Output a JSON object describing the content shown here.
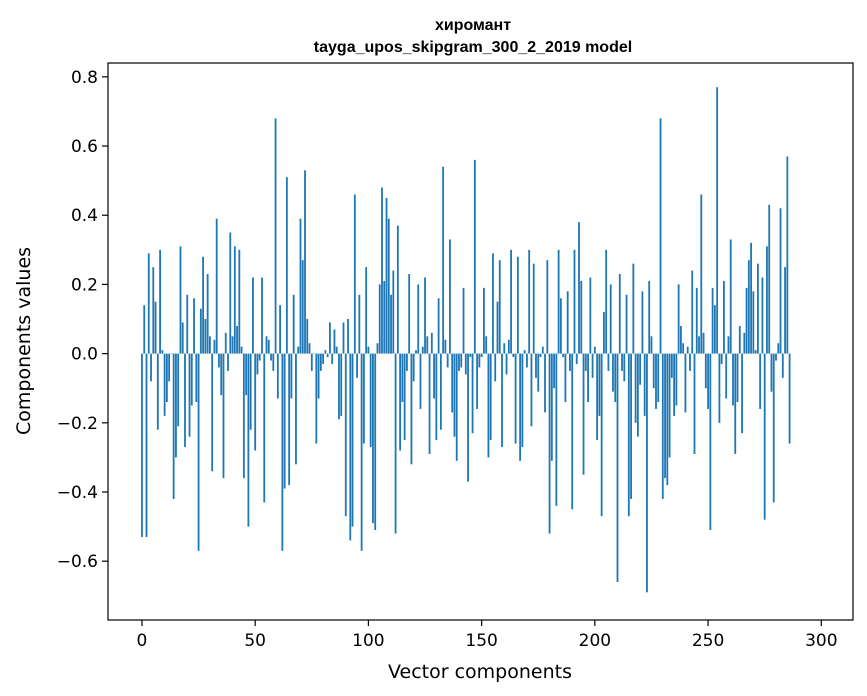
{
  "chart_data": {
    "type": "bar",
    "title": "хиромант",
    "subtitle": "tayga_upos_skipgram_300_2_2019 model",
    "xlabel": "Vector components",
    "ylabel": "Components values",
    "xlim": [
      -15,
      314
    ],
    "ylim": [
      -0.77,
      0.84
    ],
    "xticks": [
      0,
      50,
      100,
      150,
      200,
      250,
      300
    ],
    "yticks": [
      -0.6,
      -0.4,
      -0.2,
      0.0,
      0.2,
      0.4,
      0.6,
      0.8
    ],
    "xtick_labels": [
      "0",
      "50",
      "100",
      "150",
      "200",
      "250",
      "300"
    ],
    "ytick_labels": [
      "−0.6",
      "−0.4",
      "−0.2",
      "0.0",
      "0.2",
      "0.4",
      "0.6",
      "0.8"
    ],
    "grid": false,
    "bar_color": "#1f77b4",
    "values": [
      -0.53,
      0.14,
      -0.53,
      0.29,
      -0.08,
      0.25,
      0.15,
      -0.22,
      0.3,
      0.01,
      -0.18,
      -0.14,
      -0.08,
      0.0,
      -0.42,
      -0.3,
      -0.21,
      0.31,
      0.09,
      -0.27,
      0.17,
      -0.24,
      -0.15,
      0.16,
      -0.14,
      -0.57,
      0.13,
      0.28,
      0.1,
      0.23,
      0.05,
      -0.34,
      0.04,
      0.39,
      -0.04,
      -0.12,
      -0.36,
      0.06,
      -0.05,
      0.35,
      0.05,
      0.31,
      0.08,
      0.3,
      0.02,
      -0.36,
      -0.12,
      -0.5,
      -0.22,
      0.22,
      -0.28,
      -0.06,
      -0.02,
      0.22,
      -0.43,
      0.05,
      0.04,
      -0.02,
      -0.05,
      0.68,
      -0.13,
      0.14,
      -0.57,
      -0.39,
      0.51,
      -0.38,
      -0.13,
      0.17,
      -0.32,
      0.02,
      0.39,
      0.27,
      0.53,
      0.1,
      0.03,
      -0.05,
      0.0,
      -0.26,
      -0.13,
      -0.05,
      -0.03,
      0.01,
      -0.01,
      0.09,
      -0.03,
      0.07,
      0.02,
      -0.19,
      -0.18,
      0.09,
      -0.47,
      0.1,
      -0.54,
      -0.5,
      0.46,
      -0.07,
      0.17,
      -0.57,
      -0.26,
      0.25,
      0.02,
      -0.27,
      -0.49,
      -0.51,
      0.03,
      0.2,
      0.48,
      0.21,
      0.45,
      0.39,
      0.17,
      0.24,
      -0.52,
      0.37,
      -0.28,
      -0.14,
      -0.25,
      -0.05,
      0.23,
      -0.32,
      -0.08,
      0.01,
      0.2,
      -0.16,
      0.02,
      0.22,
      0.05,
      -0.29,
      0.06,
      -0.13,
      -0.25,
      0.16,
      -0.22,
      0.54,
      0.04,
      -0.04,
      0.33,
      -0.17,
      -0.24,
      -0.31,
      -0.05,
      -0.04,
      0.19,
      -0.06,
      -0.37,
      -0.01,
      -0.23,
      0.56,
      -0.16,
      -0.04,
      -0.01,
      0.19,
      0.05,
      -0.3,
      -0.25,
      0.29,
      -0.08,
      0.15,
      0.27,
      -0.27,
      0.03,
      -0.06,
      0.04,
      0.3,
      -0.01,
      -0.26,
      0.28,
      -0.31,
      -0.27,
      0.01,
      -0.04,
      0.3,
      -0.21,
      0.26,
      -0.07,
      -0.11,
      -0.01,
      0.02,
      -0.17,
      0.27,
      -0.52,
      -0.31,
      -0.1,
      -0.44,
      0.3,
      0.16,
      -0.01,
      -0.14,
      0.18,
      -0.05,
      -0.45,
      0.3,
      -0.03,
      0.38,
      0.21,
      -0.35,
      -0.05,
      -0.14,
      0.22,
      -0.07,
      0.02,
      -0.25,
      -0.18,
      -0.47,
      0.12,
      0.3,
      -0.05,
      0.2,
      -0.11,
      -0.14,
      -0.66,
      0.23,
      -0.05,
      -0.08,
      0.17,
      -0.47,
      -0.42,
      0.26,
      -0.2,
      -0.24,
      -0.09,
      0.18,
      -0.18,
      -0.69,
      0.21,
      0.05,
      -0.1,
      -0.16,
      -0.14,
      0.68,
      -0.42,
      -0.36,
      -0.38,
      -0.3,
      -0.07,
      -0.18,
      -0.15,
      0.2,
      0.08,
      0.03,
      -0.17,
      0.02,
      -0.05,
      0.24,
      -0.29,
      0.19,
      0.05,
      0.46,
      0.06,
      -0.1,
      -0.16,
      -0.51,
      0.19,
      0.14,
      0.77,
      -0.2,
      -0.03,
      0.21,
      -0.13,
      0.05,
      0.33,
      -0.15,
      -0.29,
      -0.14,
      0.08,
      -0.23,
      0.06,
      0.19,
      0.27,
      0.32,
      0.18,
      0.01,
      0.26,
      -0.16,
      0.22,
      -0.48,
      0.31,
      0.43,
      -0.11,
      -0.43,
      -0.02,
      0.03,
      0.42,
      -0.07,
      0.25,
      0.57,
      -0.26
    ]
  }
}
